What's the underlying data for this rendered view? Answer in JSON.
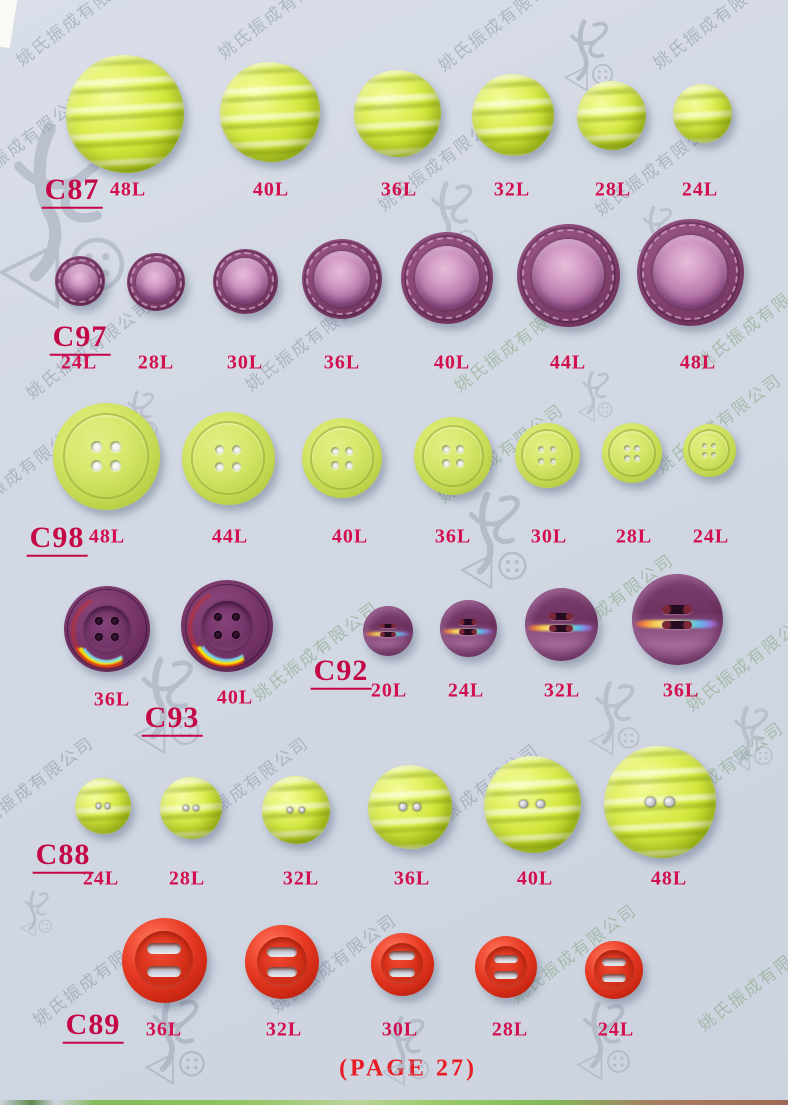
{
  "page": {
    "footer_label": "(PAGE 27)",
    "company_watermark": "姚氏振成有限公司",
    "logo_watermark": "YS button logo",
    "background_color": "#d2d8e3",
    "size_label_color": "#d2104f",
    "code_label_color": "#c40747",
    "footer_color": "#e91c23"
  },
  "groups": [
    {
      "code": "C87",
      "style": "green-wavy",
      "color": "#cfe23a",
      "items": [
        "48L",
        "40L",
        "36L",
        "32L",
        "28L",
        "24L"
      ]
    },
    {
      "code": "C97",
      "style": "leather",
      "color": "#8c4a78",
      "items": [
        "24L",
        "28L",
        "30L",
        "36L",
        "40L",
        "44L",
        "48L"
      ]
    },
    {
      "code": "C98",
      "style": "green-4hole",
      "color": "#c3d755",
      "items": [
        "48L",
        "44L",
        "40L",
        "36L",
        "30L",
        "28L",
        "24L"
      ]
    },
    {
      "code": "C93",
      "style": "plum-4hole",
      "color": "#6e3263",
      "items": [
        "36L",
        "40L"
      ]
    },
    {
      "code": "C92",
      "style": "iris-4hole",
      "color": "#7a3e6e",
      "items": [
        "20L",
        "24L",
        "32L",
        "36L"
      ]
    },
    {
      "code": "C88",
      "style": "green-wavy-2hole",
      "color": "#b5d02e",
      "items": [
        "24L",
        "28L",
        "32L",
        "36L",
        "40L",
        "48L"
      ]
    },
    {
      "code": "C89",
      "style": "red-toggle",
      "color": "#da3420",
      "items": [
        "36L",
        "32L",
        "30L",
        "28L",
        "24L"
      ]
    }
  ]
}
